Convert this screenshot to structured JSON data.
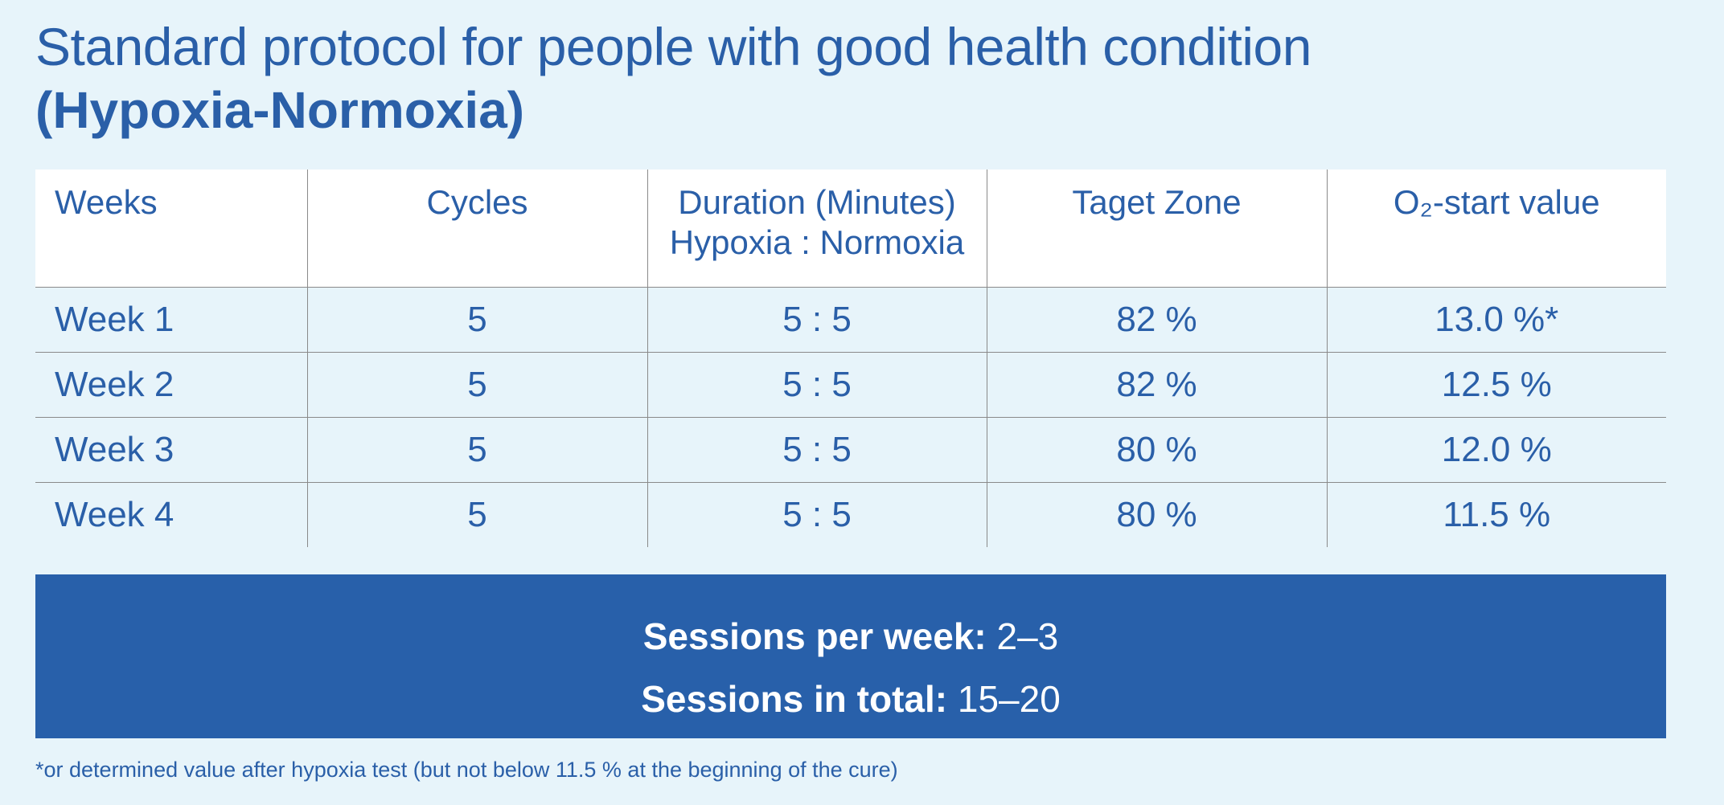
{
  "title": {
    "line1": "Standard protocol for people with good health condition",
    "line2": "(Hypoxia-Normoxia)"
  },
  "table": {
    "headers": [
      {
        "line1": "Weeks",
        "line2": ""
      },
      {
        "line1": "Cycles",
        "line2": ""
      },
      {
        "line1": "Duration (Minutes)",
        "line2": "Hypoxia : Normoxia"
      },
      {
        "line1": "Taget Zone",
        "line2": ""
      },
      {
        "line1": "O₂-start value",
        "line2": ""
      }
    ],
    "rows": [
      [
        "Week 1",
        "5",
        "5 : 5",
        "82 %",
        "13.0 %*"
      ],
      [
        "Week 2",
        "5",
        "5 : 5",
        "82 %",
        "12.5 %"
      ],
      [
        "Week 3",
        "5",
        "5 : 5",
        "80 %",
        "12.0 %"
      ],
      [
        "Week 4",
        "5",
        "5 : 5",
        "80 %",
        "11.5 %"
      ]
    ]
  },
  "sessions": {
    "per_week_label": "Sessions per week:",
    "per_week_value": "2–3",
    "total_label": "Sessions in total:",
    "total_value": "15–20"
  },
  "footnote": "*or determined value after hypoxia test (but not below 11.5 % at the beginning of the cure)",
  "colors": {
    "background": "#e7f4fa",
    "text_blue": "#2a5fa8",
    "box_blue": "#2860aa"
  }
}
